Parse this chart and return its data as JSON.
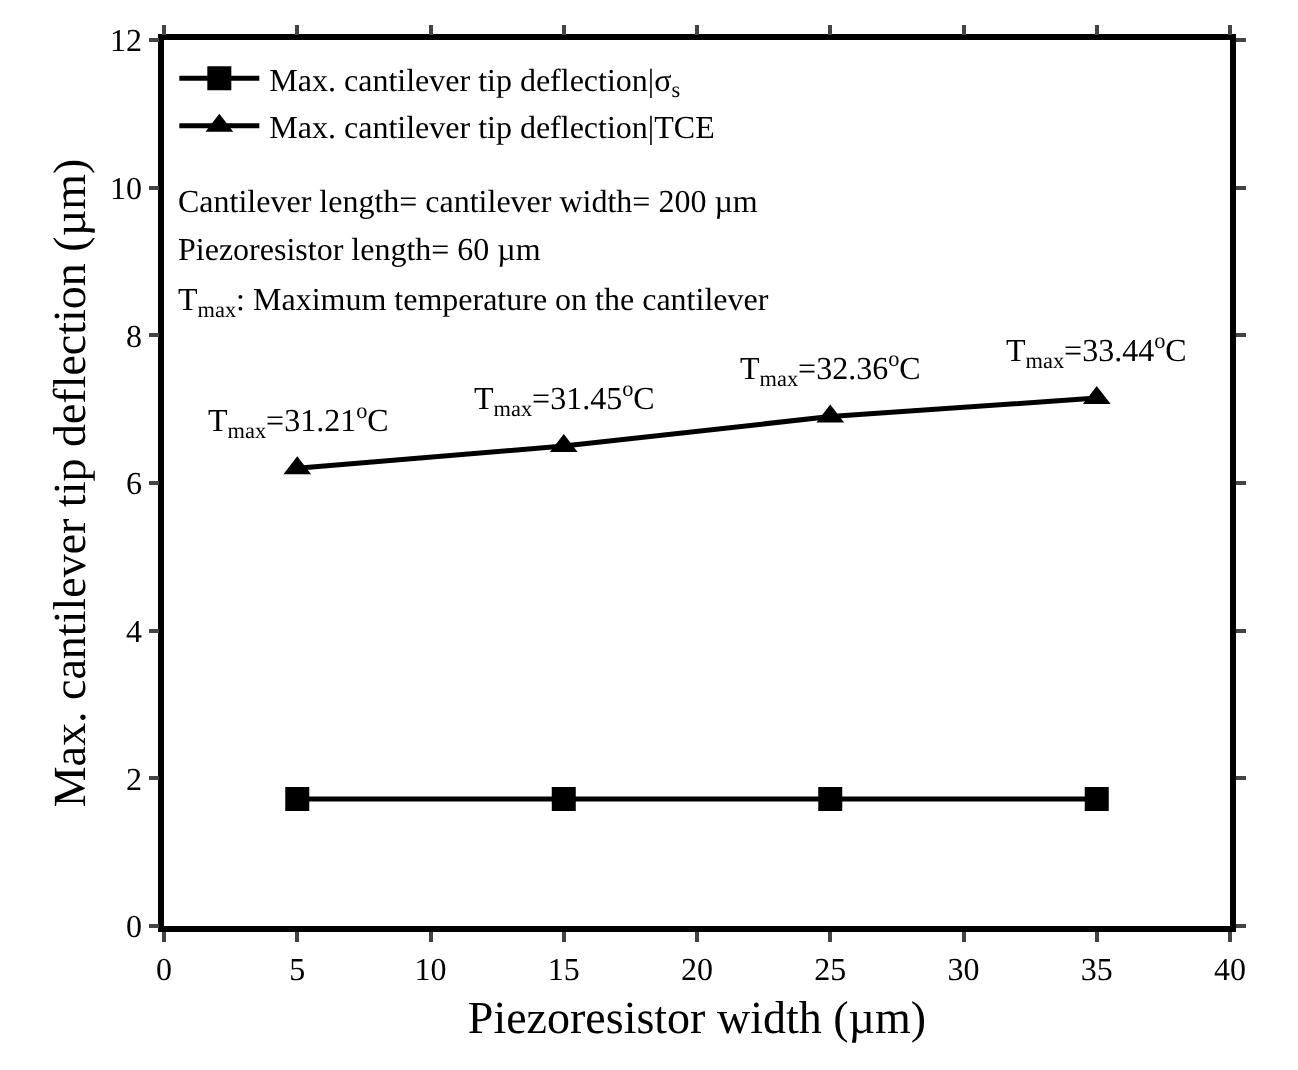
{
  "chart_data": {
    "type": "line",
    "xlabel": "Piezoresistor width (µm)",
    "ylabel": "Max. cantilever tip deflection (µm)",
    "x": [
      5,
      15,
      25,
      35
    ],
    "series": [
      {
        "name": "Max. cantilever tip deflection|σ$_{s}$",
        "color": "#000000",
        "marker": "square",
        "values": [
          1.72,
          1.72,
          1.72,
          1.72
        ]
      },
      {
        "name": "Max. cantilever tip deflection|TCE",
        "color": "#000000",
        "marker": "triangle",
        "values": [
          6.2,
          6.5,
          6.9,
          7.15
        ]
      }
    ],
    "xlim": [
      0,
      40
    ],
    "xticks": [
      0,
      5,
      10,
      15,
      20,
      25,
      30,
      35,
      40
    ],
    "ylim": [
      0,
      12
    ],
    "yticks": [
      0,
      2,
      4,
      6,
      8,
      10,
      12
    ],
    "grid": false,
    "legend": "top left",
    "line_style": "solid",
    "annotations": [
      "Cantilever length= cantilever width= 200 µm",
      "Piezoresistor length= 60 µm",
      "T$_{max}$: Maximum temperature on the cantilever",
      {
        "text": "T$_{max}$=31.21$^{o}$C",
        "x": 5,
        "y": 6.2
      },
      {
        "text": "T$_{max}$=31.45$^{o}$C",
        "x": 15,
        "y": 6.5
      },
      {
        "text": "T$_{max}$=32.36$^{o}$C",
        "x": 25,
        "y": 6.9
      },
      {
        "text": "T$_{max}$=33.44$^{o}$C",
        "x": 35,
        "y": 7.15
      }
    ]
  }
}
